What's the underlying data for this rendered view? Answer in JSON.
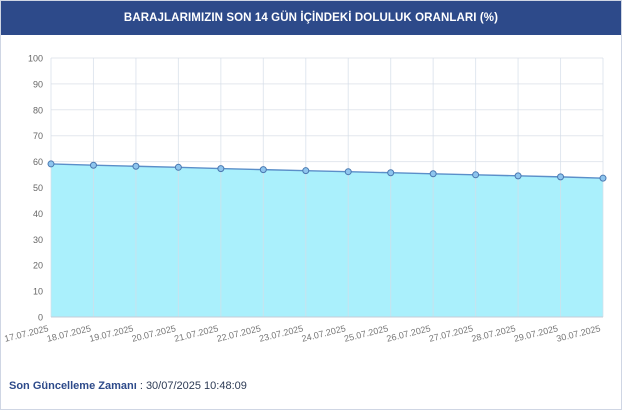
{
  "header": {
    "title": "BARAJLARIMIZIN SON 14 GÜN İÇİNDEKİ DOLULUK ORANLARI (%)"
  },
  "colors": {
    "header_bg": "#2d4a8a",
    "area_fill": "#aaf0fc",
    "line": "#5b8fc9",
    "grid": "#e3e7ee"
  },
  "chart_data": {
    "type": "area",
    "title": "BARAJLARIMIZIN SON 14 GÜN İÇİNDEKİ DOLULUK ORANLARI (%)",
    "xlabel": "",
    "ylabel": "",
    "ylim": [
      0,
      100
    ],
    "yticks": [
      0,
      10,
      20,
      30,
      40,
      50,
      60,
      70,
      80,
      90,
      100
    ],
    "grid": true,
    "legend": "none",
    "categories": [
      "17.07.2025",
      "18.07.2025",
      "19.07.2025",
      "20.07.2025",
      "21.07.2025",
      "22.07.2025",
      "23.07.2025",
      "24.07.2025",
      "25.07.2025",
      "26.07.2025",
      "27.07.2025",
      "28.07.2025",
      "29.07.2025",
      "30.07.2025"
    ],
    "values": [
      59.1,
      58.6,
      58.2,
      57.8,
      57.3,
      56.9,
      56.5,
      56.1,
      55.7,
      55.3,
      54.9,
      54.5,
      54.1,
      53.6
    ]
  },
  "footer": {
    "label": "Son Güncelleme Zamanı",
    "separator": " : ",
    "value": "30/07/2025 10:48:09"
  }
}
